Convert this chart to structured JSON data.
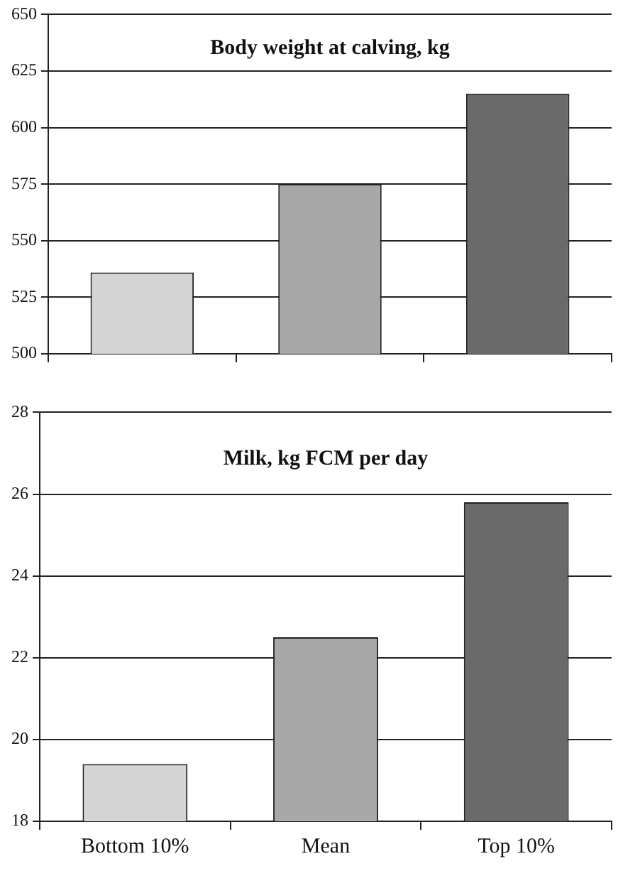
{
  "chart_data": [
    {
      "type": "bar",
      "title": "Body weight at calving, kg",
      "categories": [
        null,
        null,
        null
      ],
      "values": [
        536,
        575,
        615
      ],
      "colors": [
        "#d4d4d4",
        "#a8a8a8",
        "#6a6a6a"
      ],
      "ylim": [
        500,
        650
      ],
      "yticks": [
        500,
        525,
        550,
        575,
        600,
        625,
        650
      ],
      "grid": "y",
      "tick_labels": "y"
    },
    {
      "type": "bar",
      "title": "Milk, kg FCM per day",
      "categories": [
        "Bottom 10%",
        "Mean",
        "Top 10%"
      ],
      "values": [
        19.4,
        22.5,
        25.8
      ],
      "colors": [
        "#d4d4d4",
        "#a8a8a8",
        "#6a6a6a"
      ],
      "ylim": [
        18,
        28
      ],
      "yticks": [
        18,
        20,
        22,
        24,
        26,
        28
      ],
      "grid": "y"
    }
  ]
}
